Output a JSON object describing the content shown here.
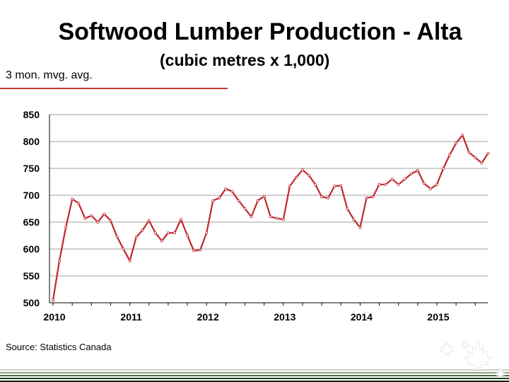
{
  "slide": {
    "title": "Softwood Lumber Production -  Alta",
    "subtitle": "(cubic metres x 1,000)",
    "note": "3 mon. mvg. avg.",
    "source": "Source: Statistics Canada"
  },
  "colors": {
    "line": "#c0272d",
    "accent": "#c0392b",
    "grid": "#999999",
    "footer_dark": "#1e3a1e"
  },
  "chart_data": {
    "type": "line",
    "title": "",
    "xlabel": "",
    "ylabel": "",
    "ylim": [
      500,
      850
    ],
    "yticks": [
      "850",
      "800",
      "750",
      "700",
      "650",
      "600",
      "550",
      "500"
    ],
    "xtick_labels": [
      "2010",
      "2011",
      "2012",
      "2013",
      "2014",
      "2015"
    ],
    "grid": true,
    "legend": "none",
    "series": [
      {
        "values": [
          505,
          578,
          640,
          693,
          685,
          657,
          662,
          650,
          665,
          653,
          623,
          600,
          578,
          622,
          635,
          653,
          630,
          615,
          630,
          630,
          655,
          625,
          597,
          598,
          630,
          690,
          695,
          712,
          707,
          690,
          675,
          660,
          690,
          698,
          660,
          657,
          655,
          717,
          733,
          747,
          737,
          720,
          697,
          695,
          717,
          718,
          675,
          655,
          640,
          695,
          697,
          720,
          720,
          730,
          720,
          730,
          740,
          746,
          722,
          712,
          720,
          750,
          775,
          797,
          812,
          780,
          770,
          760,
          778
        ]
      }
    ]
  }
}
